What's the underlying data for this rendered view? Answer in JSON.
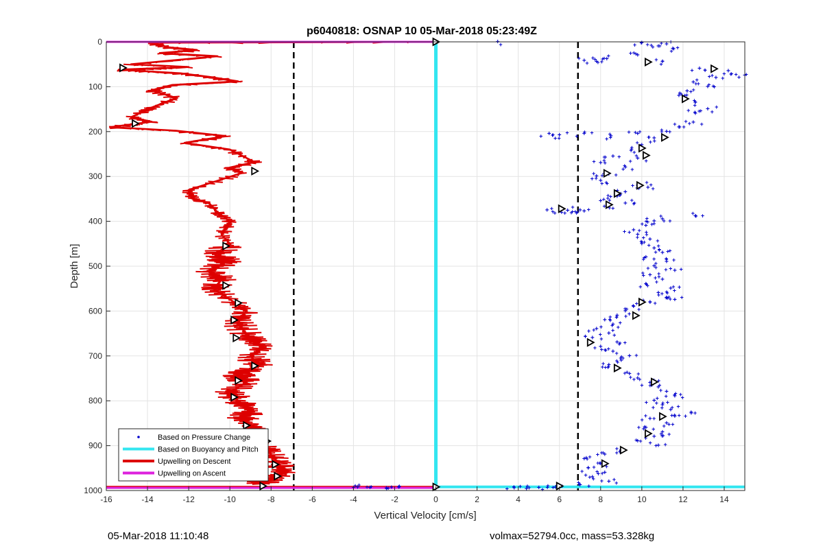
{
  "footer": {
    "left": "05-Mar-2018 11:10:48",
    "right": "volmax=52794.0cc, mass=53.328kg"
  },
  "chart_data": {
    "type": "line",
    "title": "p6040818: OSNAP 10 05-Mar-2018 05:23:49Z",
    "xlabel": "Vertical Velocity [cm/s]",
    "ylabel": "Depth [m]",
    "xlim": [
      -16,
      15
    ],
    "ylim": [
      1000,
      0
    ],
    "y_reversed": true,
    "grid": true,
    "legend_position": "bottom-left",
    "xticks": [
      -16,
      -14,
      -12,
      -10,
      -8,
      -6,
      -4,
      -2,
      0,
      2,
      4,
      6,
      8,
      10,
      12,
      14
    ],
    "yticks": [
      0,
      100,
      200,
      300,
      400,
      500,
      600,
      700,
      800,
      900,
      1000
    ],
    "legend": [
      {
        "label": "Based on Pressure Change",
        "color": "#0000cc",
        "style": "dot"
      },
      {
        "label": "Based on Buoyancy and Pitch",
        "color": "#33e6f0",
        "style": "line"
      },
      {
        "label": "Upwelling on Descent",
        "color": "#dd0000",
        "style": "line"
      },
      {
        "label": "Upwelling on Ascent",
        "color": "#dd22dd",
        "style": "line"
      }
    ],
    "vertical_dashed_lines": [
      -6.9,
      6.9
    ],
    "series": [
      {
        "name": "Based on Pressure Change",
        "color": "#0000cc",
        "points": [
          [
            3.0,
            0
          ],
          [
            10.0,
            2
          ],
          [
            11.2,
            5
          ],
          [
            10.8,
            10
          ],
          [
            11.5,
            15
          ],
          [
            9.8,
            30
          ],
          [
            8.3,
            38
          ],
          [
            7.2,
            42
          ],
          [
            7.8,
            44
          ],
          [
            11.0,
            44
          ],
          [
            12.8,
            60
          ],
          [
            14.2,
            65
          ],
          [
            15.0,
            75
          ],
          [
            13.6,
            80
          ],
          [
            12.5,
            90
          ],
          [
            13.2,
            100
          ],
          [
            12.2,
            110
          ],
          [
            11.8,
            120
          ],
          [
            12.6,
            135
          ],
          [
            13.2,
            150
          ],
          [
            12.6,
            160
          ],
          [
            12.5,
            180
          ],
          [
            11.8,
            190
          ],
          [
            11.2,
            200
          ],
          [
            9.8,
            205
          ],
          [
            8.5,
            210
          ],
          [
            6.0,
            208
          ],
          [
            5.5,
            205
          ],
          [
            7.2,
            205
          ],
          [
            10.6,
            215
          ],
          [
            10.0,
            230
          ],
          [
            9.5,
            240
          ],
          [
            8.6,
            255
          ],
          [
            8.0,
            270
          ],
          [
            9.8,
            260
          ],
          [
            9.2,
            280
          ],
          [
            8.4,
            295
          ],
          [
            7.8,
            300
          ],
          [
            8.0,
            310
          ],
          [
            9.8,
            320
          ],
          [
            10.3,
            325
          ],
          [
            9.2,
            335
          ],
          [
            8.8,
            345
          ],
          [
            8.0,
            355
          ],
          [
            8.4,
            365
          ],
          [
            9.2,
            360
          ],
          [
            7.0,
            375
          ],
          [
            6.4,
            376
          ],
          [
            5.4,
            375
          ],
          [
            7.2,
            378
          ],
          [
            12.6,
            388
          ],
          [
            11.0,
            395
          ],
          [
            10.6,
            400
          ],
          [
            10.2,
            410
          ],
          [
            9.6,
            420
          ],
          [
            9.8,
            430
          ],
          [
            10.4,
            440
          ],
          [
            10.0,
            450
          ],
          [
            10.6,
            460
          ],
          [
            11.0,
            470
          ],
          [
            10.2,
            480
          ],
          [
            11.2,
            490
          ],
          [
            10.6,
            500
          ],
          [
            11.6,
            510
          ],
          [
            10.4,
            520
          ],
          [
            11.0,
            530
          ],
          [
            10.2,
            540
          ],
          [
            11.4,
            550
          ],
          [
            10.8,
            560
          ],
          [
            11.2,
            570
          ],
          [
            11.6,
            575
          ],
          [
            10.4,
            580
          ],
          [
            9.6,
            590
          ],
          [
            9.2,
            600
          ],
          [
            8.8,
            610
          ],
          [
            8.2,
            620
          ],
          [
            8.6,
            630
          ],
          [
            7.8,
            640
          ],
          [
            8.4,
            650
          ],
          [
            7.6,
            660
          ],
          [
            8.8,
            670
          ],
          [
            8.0,
            680
          ],
          [
            8.6,
            690
          ],
          [
            9.4,
            700
          ],
          [
            9.0,
            710
          ],
          [
            8.4,
            720
          ],
          [
            8.8,
            730
          ],
          [
            9.4,
            740
          ],
          [
            9.8,
            750
          ],
          [
            10.4,
            760
          ],
          [
            10.8,
            770
          ],
          [
            11.2,
            780
          ],
          [
            11.6,
            790
          ],
          [
            10.6,
            800
          ],
          [
            11.0,
            810
          ],
          [
            11.4,
            820
          ],
          [
            12.4,
            828
          ],
          [
            11.6,
            835
          ],
          [
            10.4,
            840
          ],
          [
            11.2,
            850
          ],
          [
            10.2,
            860
          ],
          [
            11.0,
            870
          ],
          [
            10.6,
            880
          ],
          [
            9.8,
            890
          ],
          [
            10.8,
            900
          ],
          [
            9.0,
            910
          ],
          [
            8.2,
            920
          ],
          [
            7.2,
            930
          ],
          [
            8.0,
            940
          ],
          [
            7.4,
            950
          ],
          [
            8.2,
            960
          ],
          [
            7.6,
            970
          ],
          [
            8.4,
            980
          ],
          [
            7.0,
            988
          ],
          [
            -3.8,
            993
          ],
          [
            -3.2,
            994
          ],
          [
            -2.4,
            995
          ],
          [
            -1.8,
            993
          ],
          [
            3.8,
            995
          ],
          [
            5.0,
            994
          ],
          [
            5.8,
            993
          ],
          [
            4.4,
            996
          ]
        ]
      },
      {
        "name": "Based on Buoyancy and Pitch",
        "color": "#33e6f0",
        "points": [
          [
            0,
            0
          ],
          [
            0,
            100
          ],
          [
            0,
            300
          ],
          [
            0,
            500
          ],
          [
            0,
            700
          ],
          [
            0,
            900
          ],
          [
            0,
            992
          ],
          [
            15,
            992
          ]
        ]
      },
      {
        "name": "Upwelling on Descent",
        "color": "#dd0000",
        "points": [
          [
            0,
            0
          ],
          [
            -13.8,
            2
          ],
          [
            -13.0,
            12
          ],
          [
            -11.6,
            18
          ],
          [
            -13.4,
            25
          ],
          [
            -10.6,
            32
          ],
          [
            -14.8,
            50
          ],
          [
            -12.0,
            56
          ],
          [
            -15.4,
            62
          ],
          [
            -12.4,
            70
          ],
          [
            -11.0,
            78
          ],
          [
            -9.6,
            88
          ],
          [
            -12.8,
            96
          ],
          [
            -13.8,
            108
          ],
          [
            -12.6,
            125
          ],
          [
            -14.0,
            150
          ],
          [
            -14.8,
            168
          ],
          [
            -13.8,
            178
          ],
          [
            -15.8,
            190
          ],
          [
            -12.6,
            198
          ],
          [
            -10.2,
            210
          ],
          [
            -12.2,
            225
          ],
          [
            -10.0,
            240
          ],
          [
            -8.8,
            268
          ],
          [
            -10.0,
            280
          ],
          [
            -9.4,
            292
          ],
          [
            -12.0,
            330
          ],
          [
            -11.8,
            348
          ],
          [
            -11.0,
            360
          ],
          [
            -10.6,
            380
          ],
          [
            -10.0,
            400
          ],
          [
            -10.4,
            430
          ],
          [
            -10.0,
            450
          ],
          [
            -10.6,
            470
          ],
          [
            -10.2,
            490
          ],
          [
            -11.0,
            510
          ],
          [
            -10.4,
            530
          ],
          [
            -10.8,
            550
          ],
          [
            -9.8,
            580
          ],
          [
            -9.2,
            600
          ],
          [
            -9.6,
            620
          ],
          [
            -9.4,
            640
          ],
          [
            -9.0,
            660
          ],
          [
            -8.4,
            680
          ],
          [
            -9.0,
            700
          ],
          [
            -8.6,
            720
          ],
          [
            -9.6,
            740
          ],
          [
            -9.2,
            760
          ],
          [
            -10.0,
            780
          ],
          [
            -9.6,
            800
          ],
          [
            -9.0,
            820
          ],
          [
            -9.4,
            840
          ],
          [
            -8.8,
            860
          ],
          [
            -9.2,
            880
          ],
          [
            -8.4,
            900
          ],
          [
            -8.0,
            920
          ],
          [
            -7.6,
            940
          ],
          [
            -7.4,
            960
          ],
          [
            -8.2,
            975
          ],
          [
            -8.6,
            985
          ],
          [
            -16,
            992
          ]
        ]
      },
      {
        "name": "Upwelling on Ascent",
        "color": "#dd22dd",
        "points": [
          [
            -16,
            0
          ],
          [
            0,
            0
          ],
          [
            -16,
            994
          ],
          [
            0,
            994
          ]
        ]
      }
    ],
    "markers": [
      {
        "x": -15.2,
        "y": 58
      },
      {
        "x": -14.6,
        "y": 182
      },
      {
        "x": -8.8,
        "y": 288
      },
      {
        "x": -10.2,
        "y": 455
      },
      {
        "x": -10.2,
        "y": 543
      },
      {
        "x": -9.6,
        "y": 582
      },
      {
        "x": -9.8,
        "y": 620
      },
      {
        "x": -9.7,
        "y": 660
      },
      {
        "x": -8.8,
        "y": 722
      },
      {
        "x": -9.6,
        "y": 755
      },
      {
        "x": -9.8,
        "y": 792
      },
      {
        "x": -9.2,
        "y": 855
      },
      {
        "x": -8.2,
        "y": 890
      },
      {
        "x": -7.8,
        "y": 942
      },
      {
        "x": -7.7,
        "y": 968
      },
      {
        "x": -8.4,
        "y": 990
      },
      {
        "x": 0,
        "y": 0
      },
      {
        "x": 0,
        "y": 992
      },
      {
        "x": 10.3,
        "y": 45
      },
      {
        "x": 13.5,
        "y": 60
      },
      {
        "x": 12.1,
        "y": 127
      },
      {
        "x": 11.1,
        "y": 213
      },
      {
        "x": 10.0,
        "y": 237
      },
      {
        "x": 10.2,
        "y": 253
      },
      {
        "x": 8.3,
        "y": 293
      },
      {
        "x": 9.9,
        "y": 320
      },
      {
        "x": 8.8,
        "y": 338
      },
      {
        "x": 8.4,
        "y": 363
      },
      {
        "x": 6.1,
        "y": 372
      },
      {
        "x": 10.0,
        "y": 580
      },
      {
        "x": 9.7,
        "y": 610
      },
      {
        "x": 7.5,
        "y": 670
      },
      {
        "x": 8.8,
        "y": 727
      },
      {
        "x": 10.6,
        "y": 758
      },
      {
        "x": 11.0,
        "y": 835
      },
      {
        "x": 10.3,
        "y": 873
      },
      {
        "x": 9.1,
        "y": 910
      },
      {
        "x": 8.2,
        "y": 940
      },
      {
        "x": 6.0,
        "y": 990
      }
    ]
  }
}
